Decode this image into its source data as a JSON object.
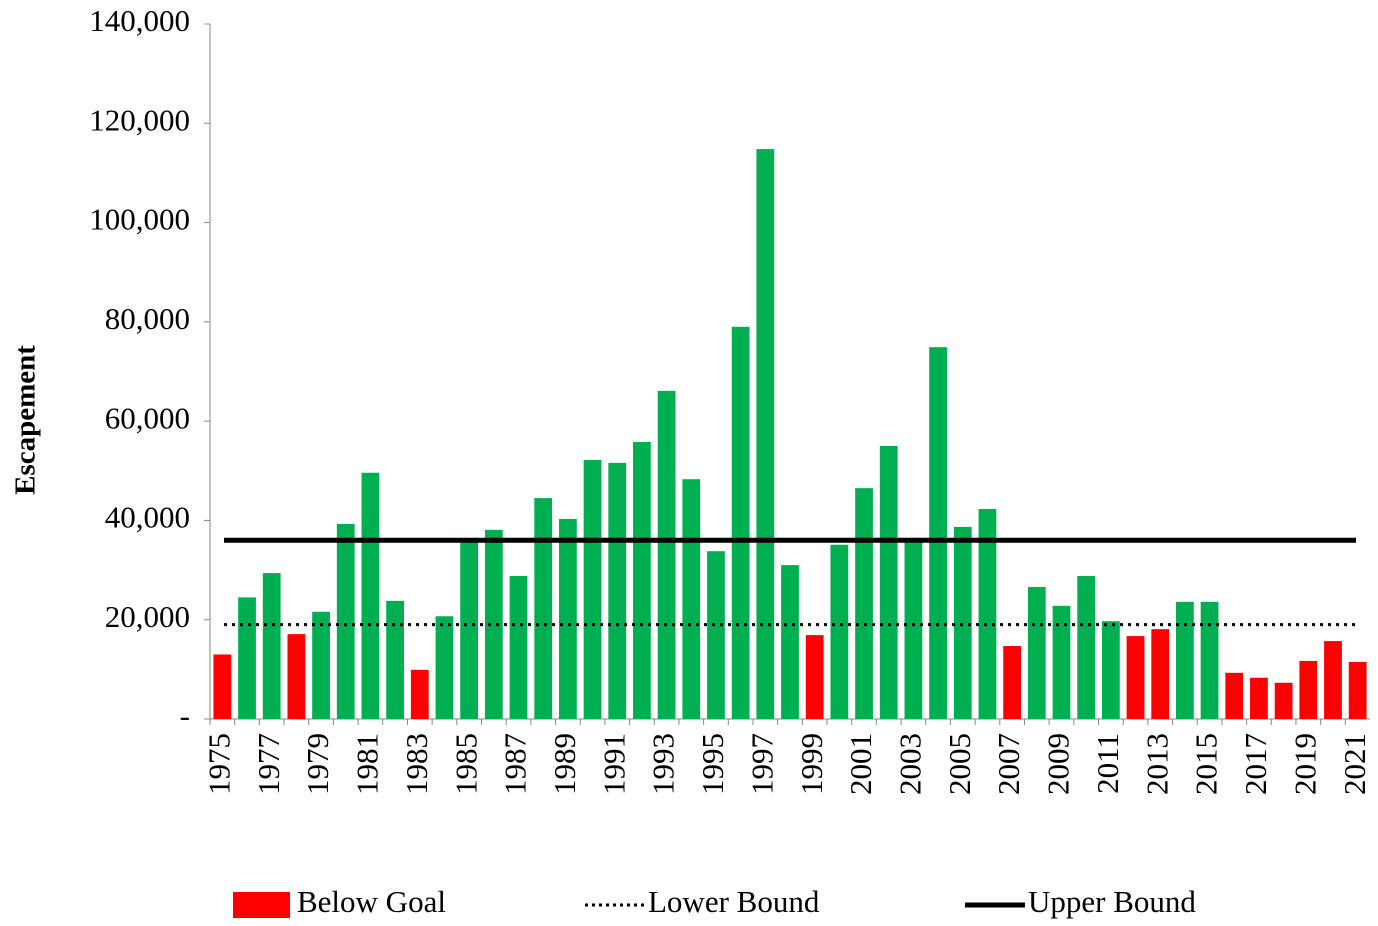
{
  "chart_data": {
    "type": "bar",
    "y_label": "Escapement",
    "categories": [
      "1975",
      null,
      "1977",
      null,
      "1979",
      null,
      "1981",
      null,
      "1983",
      null,
      "1985",
      null,
      "1987",
      null,
      "1989",
      null,
      "1991",
      null,
      "1993",
      null,
      "1995",
      null,
      "1997",
      null,
      "1999",
      null,
      "2001",
      null,
      "2003",
      null,
      "2005",
      null,
      "2007",
      null,
      "2009",
      null,
      "2011",
      null,
      "2013",
      null,
      "2015",
      null,
      "2017",
      null,
      "2019",
      null,
      "2021"
    ],
    "series": [
      {
        "name": "Below Goal",
        "color": "#ff0000",
        "values": [
          13000,
          null,
          null,
          17100,
          null,
          null,
          null,
          null,
          9900,
          null,
          null,
          null,
          null,
          null,
          null,
          null,
          null,
          null,
          null,
          null,
          null,
          null,
          null,
          null,
          16900,
          null,
          null,
          null,
          null,
          null,
          null,
          null,
          14700,
          null,
          null,
          null,
          null,
          16700,
          18100,
          null,
          null,
          9300,
          8300,
          7300,
          11700,
          15700,
          11500
        ]
      },
      {
        "color": "#00b050",
        "values": [
          null,
          24500,
          29400,
          null,
          21600,
          39300,
          49600,
          23800,
          null,
          20700,
          35900,
          38100,
          28800,
          44500,
          40300,
          52200,
          51600,
          55800,
          66100,
          48300,
          33800,
          79000,
          114800,
          31000,
          null,
          35100,
          46500,
          55000,
          35900,
          74900,
          38700,
          42300,
          null,
          26600,
          22800,
          28800,
          19700,
          null,
          null,
          23600,
          23600,
          null,
          null,
          null,
          null,
          null,
          null
        ]
      }
    ],
    "lines": [
      {
        "name": "Lower Bound",
        "value": 19000,
        "style": "dotted",
        "color": "#000000"
      },
      {
        "name": "Upper Bound",
        "value": 36000,
        "style": "solid",
        "color": "#000000"
      }
    ],
    "ylim": [
      0,
      140000
    ],
    "yticks": [
      {
        "value": 0,
        "label": "-"
      },
      {
        "value": 20000,
        "label": "20,000"
      },
      {
        "value": 40000,
        "label": "40,000"
      },
      {
        "value": 60000,
        "label": "60,000"
      },
      {
        "value": 80000,
        "label": "80,000"
      },
      {
        "value": 100000,
        "label": "100,000"
      },
      {
        "value": 120000,
        "label": "120,000"
      },
      {
        "value": 140000,
        "label": "140,000"
      }
    ],
    "grid": false
  }
}
